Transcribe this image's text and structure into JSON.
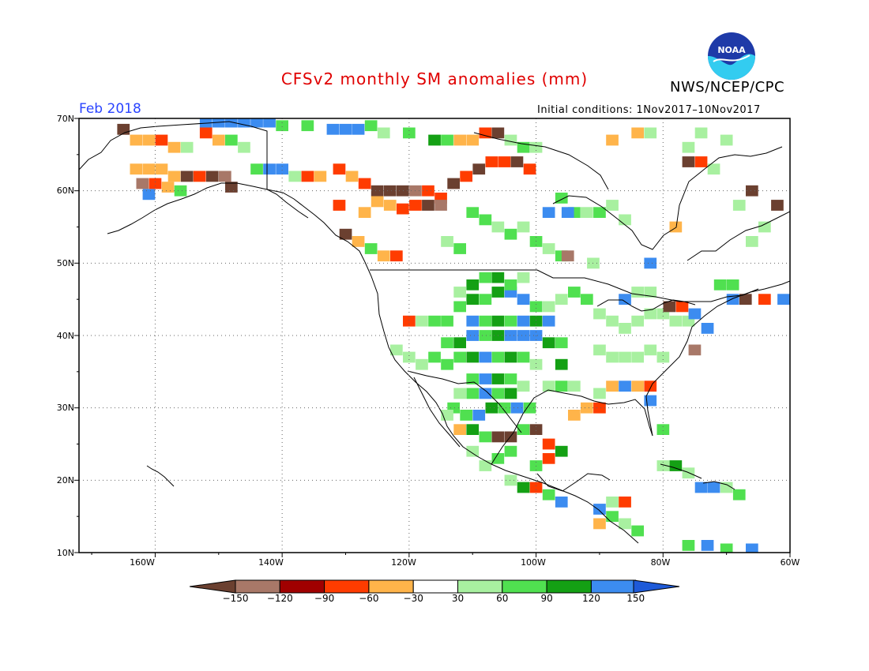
{
  "title": "CFSv2 monthly SM anomalies (mm)",
  "agency": "NWS/NCEP/CPC",
  "logo_text": "NOAA",
  "valid_month": "Feb 2018",
  "initial_conditions": "Initial conditions: 1Nov2017–10Nov2017",
  "map": {
    "lon_range": [
      -172,
      -60
    ],
    "lat_range": [
      10,
      70
    ],
    "grid": "dotted",
    "lat_labels": [
      "70N",
      "60N",
      "50N",
      "40N",
      "30N",
      "20N",
      "10N"
    ],
    "lon_labels": [
      "160W",
      "140W",
      "120W",
      "100W",
      "80W",
      "60W"
    ]
  },
  "colorbar": {
    "labels": [
      "−150",
      "−120",
      "−90",
      "−60",
      "−30",
      "30",
      "60",
      "90",
      "120",
      "150"
    ],
    "colors": [
      "#6b4030",
      "#a87868",
      "#a00000",
      "#ff3c00",
      "#ffb44a",
      "#ffffff",
      "#a8f0a0",
      "#50e050",
      "#14a014",
      "#3c8cf0",
      "#1e5ad8"
    ]
  },
  "colors": {
    "title": "#e00000",
    "valid_month": "#2a44ff",
    "brown_dark": "#6b4030",
    "brown_light": "#a87868",
    "red_dark": "#a00000",
    "red": "#ff3c00",
    "orange": "#ffb44a",
    "green_light": "#a8f0a0",
    "green": "#50e050",
    "green_dark": "#14a014",
    "blue": "#3c8cf0"
  }
}
